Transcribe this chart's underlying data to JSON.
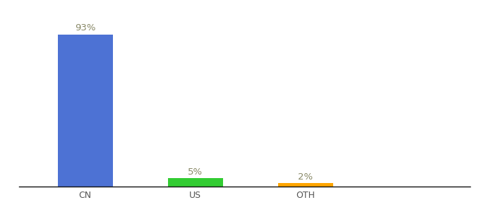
{
  "categories": [
    "CN",
    "US",
    "OTH"
  ],
  "values": [
    93,
    5,
    2
  ],
  "bar_colors": [
    "#4d72d4",
    "#33cc33",
    "#FFA500"
  ],
  "label_texts": [
    "93%",
    "5%",
    "2%"
  ],
  "background_color": "#ffffff",
  "ylim": [
    0,
    105
  ],
  "label_fontsize": 9.5,
  "tick_fontsize": 9,
  "bar_width": 0.5,
  "xlim": [
    -0.6,
    3.5
  ]
}
